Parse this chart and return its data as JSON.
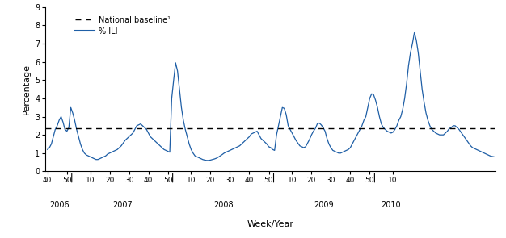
{
  "title": "",
  "xlabel": "Week/Year",
  "ylabel": "Percentage",
  "ylim": [
    0,
    9
  ],
  "yticks": [
    0,
    1,
    2,
    3,
    4,
    5,
    6,
    7,
    8,
    9
  ],
  "baseline": 2.35,
  "baseline_label": "National baseline¹",
  "line_label": "% ILI",
  "line_color": "#1f5fa6",
  "baseline_color": "#000000",
  "background_color": "#ffffff",
  "x_year_labels": [
    "2006",
    "2007",
    "2008",
    "2009",
    "2010"
  ],
  "ili_data": [
    1.2,
    1.3,
    1.5,
    1.9,
    2.3,
    2.5,
    2.8,
    3.0,
    2.7,
    2.3,
    2.2,
    2.4,
    3.5,
    3.2,
    2.8,
    2.3,
    1.9,
    1.5,
    1.2,
    1.0,
    0.9,
    0.85,
    0.8,
    0.75,
    0.7,
    0.65,
    0.65,
    0.7,
    0.75,
    0.8,
    0.85,
    0.95,
    1.0,
    1.05,
    1.1,
    1.15,
    1.2,
    1.3,
    1.4,
    1.55,
    1.7,
    1.8,
    1.9,
    2.0,
    2.1,
    2.3,
    2.5,
    2.55,
    2.6,
    2.5,
    2.4,
    2.3,
    2.1,
    1.9,
    1.8,
    1.7,
    1.6,
    1.5,
    1.4,
    1.3,
    1.2,
    1.15,
    1.1,
    1.05,
    4.0,
    5.0,
    5.95,
    5.5,
    4.5,
    3.5,
    2.8,
    2.3,
    1.9,
    1.5,
    1.2,
    1.0,
    0.85,
    0.8,
    0.75,
    0.7,
    0.65,
    0.62,
    0.6,
    0.6,
    0.62,
    0.65,
    0.68,
    0.72,
    0.78,
    0.85,
    0.92,
    1.0,
    1.05,
    1.1,
    1.15,
    1.2,
    1.25,
    1.3,
    1.35,
    1.4,
    1.5,
    1.6,
    1.7,
    1.8,
    1.9,
    2.05,
    2.1,
    2.15,
    2.2,
    2.0,
    1.8,
    1.7,
    1.6,
    1.5,
    1.35,
    1.3,
    1.2,
    1.15,
    2.0,
    2.5,
    3.0,
    3.5,
    3.45,
    3.1,
    2.5,
    2.3,
    2.1,
    1.9,
    1.7,
    1.55,
    1.4,
    1.35,
    1.3,
    1.35,
    1.55,
    1.75,
    2.0,
    2.2,
    2.35,
    2.6,
    2.65,
    2.55,
    2.4,
    2.2,
    1.8,
    1.5,
    1.3,
    1.15,
    1.1,
    1.05,
    1.0,
    1.0,
    1.05,
    1.1,
    1.15,
    1.2,
    1.3,
    1.5,
    1.7,
    1.9,
    2.1,
    2.3,
    2.5,
    2.8,
    3.0,
    3.5,
    4.0,
    4.25,
    4.2,
    3.9,
    3.5,
    3.0,
    2.6,
    2.4,
    2.3,
    2.2,
    2.15,
    2.1,
    2.15,
    2.3,
    2.5,
    2.8,
    3.0,
    3.4,
    4.0,
    4.8,
    5.8,
    6.5,
    7.0,
    7.6,
    7.2,
    6.5,
    5.5,
    4.5,
    3.8,
    3.2,
    2.8,
    2.5,
    2.3,
    2.2,
    2.1,
    2.05,
    2.0,
    2.0,
    2.0,
    2.1,
    2.2,
    2.35,
    2.4,
    2.5,
    2.5,
    2.4,
    2.3,
    2.15,
    2.0,
    1.85,
    1.7,
    1.55,
    1.4,
    1.3,
    1.25,
    1.2,
    1.15,
    1.1,
    1.05,
    1.0,
    0.95,
    0.9,
    0.85,
    0.82,
    0.8
  ]
}
